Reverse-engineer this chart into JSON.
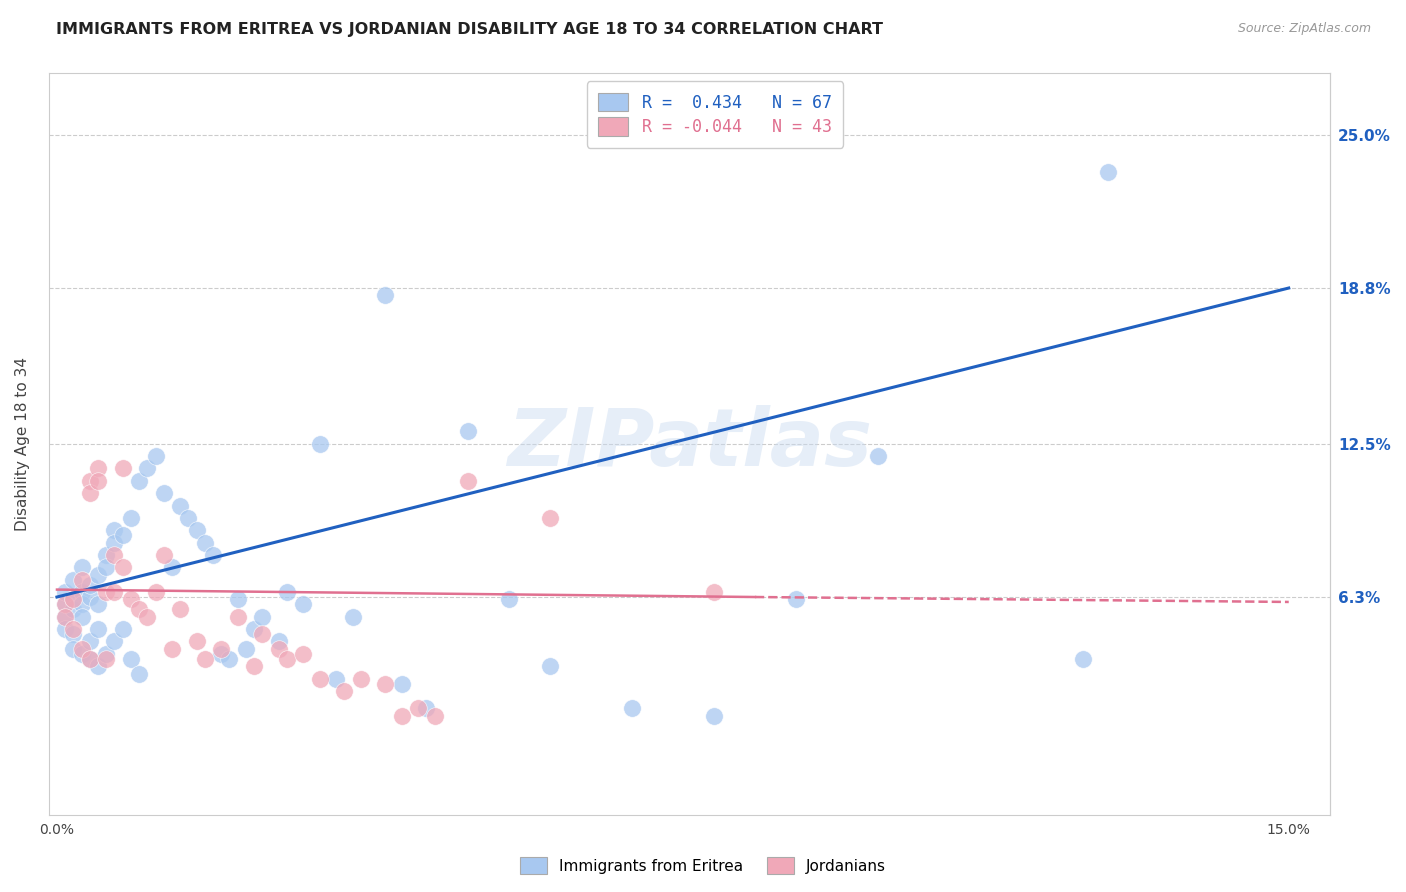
{
  "title": "IMMIGRANTS FROM ERITREA VS JORDANIAN DISABILITY AGE 18 TO 34 CORRELATION CHART",
  "source": "Source: ZipAtlas.com",
  "ylabel": "Disability Age 18 to 34",
  "y_ticks": [
    0.063,
    0.125,
    0.188,
    0.25
  ],
  "y_tick_labels": [
    "6.3%",
    "12.5%",
    "18.8%",
    "25.0%"
  ],
  "x_ticks": [
    0.0,
    0.03,
    0.06,
    0.09,
    0.12,
    0.15
  ],
  "x_tick_labels": [
    "0.0%",
    "",
    "",
    "",
    "",
    "15.0%"
  ],
  "xlim": [
    -0.001,
    0.155
  ],
  "ylim": [
    -0.025,
    0.275
  ],
  "watermark": "ZIPatlas",
  "legend_eritrea_R": "0.434",
  "legend_eritrea_N": "67",
  "legend_jordan_R": "-0.044",
  "legend_jordan_N": "43",
  "color_eritrea": "#a8c8f0",
  "color_jordan": "#f0a8b8",
  "trendline_eritrea_color": "#2060c0",
  "trendline_jordan_color": "#e07090",
  "background_color": "#ffffff",
  "trendline_eritrea_x0": 0.0,
  "trendline_eritrea_y0": 0.063,
  "trendline_eritrea_x1": 0.15,
  "trendline_eritrea_y1": 0.188,
  "trendline_jordan_x0": 0.0,
  "trendline_jordan_y0": 0.066,
  "trendline_jordan_x1": 0.085,
  "trendline_jordan_y1_solid": 0.063,
  "trendline_jordan_x1_dash": 0.15,
  "trendline_jordan_y1_dash": 0.061,
  "eritrea_pts": [
    [
      0.001,
      0.06
    ],
    [
      0.001,
      0.065
    ],
    [
      0.001,
      0.055
    ],
    [
      0.001,
      0.05
    ],
    [
      0.002,
      0.062
    ],
    [
      0.002,
      0.07
    ],
    [
      0.002,
      0.058
    ],
    [
      0.002,
      0.048
    ],
    [
      0.002,
      0.042
    ],
    [
      0.003,
      0.075
    ],
    [
      0.003,
      0.065
    ],
    [
      0.003,
      0.06
    ],
    [
      0.003,
      0.055
    ],
    [
      0.003,
      0.04
    ],
    [
      0.004,
      0.063
    ],
    [
      0.004,
      0.068
    ],
    [
      0.004,
      0.045
    ],
    [
      0.004,
      0.038
    ],
    [
      0.005,
      0.072
    ],
    [
      0.005,
      0.06
    ],
    [
      0.005,
      0.05
    ],
    [
      0.005,
      0.035
    ],
    [
      0.006,
      0.08
    ],
    [
      0.006,
      0.075
    ],
    [
      0.006,
      0.04
    ],
    [
      0.007,
      0.09
    ],
    [
      0.007,
      0.085
    ],
    [
      0.007,
      0.045
    ],
    [
      0.008,
      0.088
    ],
    [
      0.008,
      0.05
    ],
    [
      0.009,
      0.095
    ],
    [
      0.009,
      0.038
    ],
    [
      0.01,
      0.11
    ],
    [
      0.01,
      0.032
    ],
    [
      0.011,
      0.115
    ],
    [
      0.012,
      0.12
    ],
    [
      0.013,
      0.105
    ],
    [
      0.014,
      0.075
    ],
    [
      0.015,
      0.1
    ],
    [
      0.016,
      0.095
    ],
    [
      0.017,
      0.09
    ],
    [
      0.018,
      0.085
    ],
    [
      0.019,
      0.08
    ],
    [
      0.02,
      0.04
    ],
    [
      0.021,
      0.038
    ],
    [
      0.022,
      0.062
    ],
    [
      0.023,
      0.042
    ],
    [
      0.024,
      0.05
    ],
    [
      0.025,
      0.055
    ],
    [
      0.027,
      0.045
    ],
    [
      0.028,
      0.065
    ],
    [
      0.03,
      0.06
    ],
    [
      0.032,
      0.125
    ],
    [
      0.034,
      0.03
    ],
    [
      0.036,
      0.055
    ],
    [
      0.04,
      0.185
    ],
    [
      0.042,
      0.028
    ],
    [
      0.045,
      0.018
    ],
    [
      0.05,
      0.13
    ],
    [
      0.055,
      0.062
    ],
    [
      0.06,
      0.035
    ],
    [
      0.07,
      0.018
    ],
    [
      0.08,
      0.015
    ],
    [
      0.09,
      0.062
    ],
    [
      0.1,
      0.12
    ],
    [
      0.125,
      0.038
    ],
    [
      0.128,
      0.235
    ]
  ],
  "jordan_pts": [
    [
      0.001,
      0.06
    ],
    [
      0.001,
      0.055
    ],
    [
      0.002,
      0.062
    ],
    [
      0.002,
      0.05
    ],
    [
      0.003,
      0.07
    ],
    [
      0.003,
      0.042
    ],
    [
      0.004,
      0.11
    ],
    [
      0.004,
      0.105
    ],
    [
      0.004,
      0.038
    ],
    [
      0.005,
      0.115
    ],
    [
      0.005,
      0.11
    ],
    [
      0.006,
      0.065
    ],
    [
      0.006,
      0.038
    ],
    [
      0.007,
      0.08
    ],
    [
      0.007,
      0.065
    ],
    [
      0.008,
      0.115
    ],
    [
      0.008,
      0.075
    ],
    [
      0.009,
      0.062
    ],
    [
      0.01,
      0.058
    ],
    [
      0.011,
      0.055
    ],
    [
      0.012,
      0.065
    ],
    [
      0.013,
      0.08
    ],
    [
      0.014,
      0.042
    ],
    [
      0.015,
      0.058
    ],
    [
      0.017,
      0.045
    ],
    [
      0.018,
      0.038
    ],
    [
      0.02,
      0.042
    ],
    [
      0.022,
      0.055
    ],
    [
      0.024,
      0.035
    ],
    [
      0.025,
      0.048
    ],
    [
      0.027,
      0.042
    ],
    [
      0.028,
      0.038
    ],
    [
      0.03,
      0.04
    ],
    [
      0.032,
      0.03
    ],
    [
      0.035,
      0.025
    ],
    [
      0.037,
      0.03
    ],
    [
      0.04,
      0.028
    ],
    [
      0.042,
      0.015
    ],
    [
      0.044,
      0.018
    ],
    [
      0.046,
      0.015
    ],
    [
      0.05,
      0.11
    ],
    [
      0.06,
      0.095
    ],
    [
      0.08,
      0.065
    ]
  ]
}
